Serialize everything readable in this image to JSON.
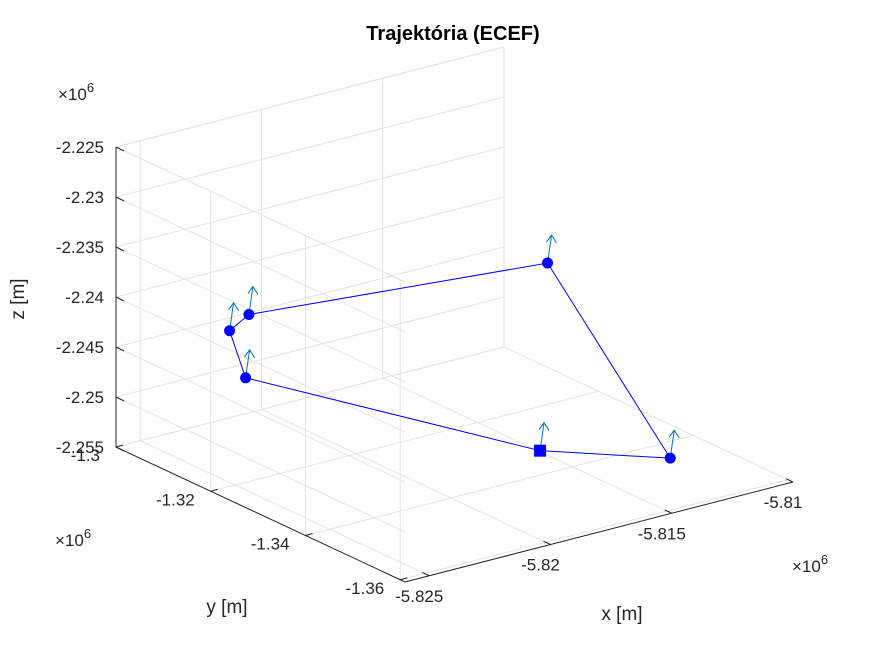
{
  "chart_data": {
    "type": "line3d",
    "title": "Trajektória (ECEF)",
    "xlabel": "x [m]",
    "ylabel": "y [m]",
    "zlabel": "z [m]",
    "exponent_label": "×10",
    "exponent_power": "6",
    "x_ticks": [
      "-5.825",
      "-5.82",
      "-5.815",
      "-5.81"
    ],
    "y_ticks": [
      "-1.3",
      "-1.32",
      "-1.34",
      "-1.36"
    ],
    "z_ticks": [
      "-2.225",
      "-2.23",
      "-2.235",
      "-2.24",
      "-2.245",
      "-2.25",
      "-2.255"
    ],
    "xlim": [
      -5826000,
      -5810000
    ],
    "ylim": [
      -1361000,
      -1300000
    ],
    "zlim": [
      -2255000,
      -2225000
    ],
    "grid": true,
    "series_color": "#0000ff",
    "vector_color": "#0072bd",
    "points": [
      {
        "x": -5813500,
        "y": -1353000,
        "z": -2252200,
        "marker": "circle"
      },
      {
        "x": -5812600,
        "y": -1322500,
        "z": -2240000,
        "marker": "circle"
      },
      {
        "x": -5821300,
        "y": -1304000,
        "z": -2243800,
        "marker": "circle"
      },
      {
        "x": -5822000,
        "y": -1303500,
        "z": -2245100,
        "marker": "circle"
      },
      {
        "x": -5823000,
        "y": -1312000,
        "z": -2247300,
        "marker": "circle"
      },
      {
        "x": -5817500,
        "y": -1346000,
        "z": -2250500,
        "marker": "square"
      }
    ]
  }
}
